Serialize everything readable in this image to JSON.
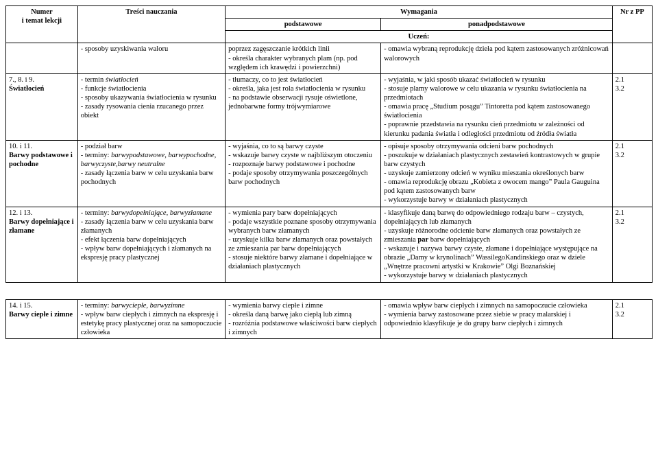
{
  "header": {
    "col1": "Numer\ni temat lekcji",
    "col2": "Treści nauczania",
    "req": "Wymagania",
    "basic": "podstawowe",
    "ext": "ponadpodstawowe",
    "student": "Uczeń:",
    "col5": "Nr z PP"
  },
  "rows": [
    {
      "num": "",
      "tresci": "- sposoby uzyskiwania waloru",
      "pod": "poprzez zagęszczanie krótkich linii\n- określa charakter wybranych plam (np. pod względem ich krawędzi i powierzchni)",
      "ponad": "- omawia wybraną reprodukcję dzieła pod kątem zastosowanych zróżnicowań walorowych",
      "nr": ""
    },
    {
      "num": "7., 8. i 9.",
      "numTitle": "Światłocień",
      "tresci_items": [
        {
          "pre": "- termin ",
          "it": "światłocień"
        },
        {
          "txt": "- funkcje światłocienia"
        },
        {
          "txt": "- sposoby ukazywania światłocienia w rysunku"
        },
        {
          "txt": "- zasady rysowania cienia rzucanego przez obiekt"
        }
      ],
      "pod": "- tłumaczy, co to jest światłocień\n- określa, jaka jest rola światłocienia w rysunku\n- na podstawie obserwacji rysuje oświetlone, jednobarwne formy trójwymiarowe",
      "ponad": "- wyjaśnia, w jaki sposób ukazać światłocień w rysunku\n- stosuje plamy walorowe w celu ukazania w rysunku światłocienia na przedmiotach\n- omawia pracę „Studium posągu” Tintoretta pod kątem zastosowanego światłocienia\n- poprawnie przedstawia na rysunku cień przedmiotu w zależności od kierunku padania światła i odległości przedmiotu od źródła światła",
      "nr": "2.1\n3.2"
    },
    {
      "num": "10. i 11.",
      "numTitle": "Barwy podstawowe i pochodne",
      "tresci_items": [
        {
          "txt": "- podział barw"
        },
        {
          "pre": "- terminy: ",
          "it": "barwypodstawowe, barwypochodne, barwyczyste,barwy neutralne"
        },
        {
          "txt": "- zasady łączenia barw w celu uzyskania barw pochodnych"
        }
      ],
      "pod": "- wyjaśnia, co to są barwy czyste\n- wskazuje barwy czyste w najbliższym otoczeniu\n- rozpoznaje barwy podstawowe i pochodne\n- podaje sposoby otrzymywania poszczególnych barw pochodnych",
      "ponad": "- opisuje sposoby otrzymywania odcieni barw pochodnych\n- poszukuje w działaniach plastycznych zestawień kontrastowych w grupie barw czystych\n- uzyskuje zamierzony odcień w wyniku mieszania określonych barw\n- omawia reprodukcję obrazu „Kobieta z owocem mango” Paula Gauguina pod kątem zastosowanych barw\n- wykorzystuje barwy w działaniach plastycznych",
      "nr": "2.1\n3.2"
    },
    {
      "num": "12. i 13.",
      "numTitle": "Barwy dopełniające i złamane",
      "tresci_items": [
        {
          "pre": "- terminy: ",
          "it": "barwydopełniające, barwyzłamane"
        },
        {
          "txt": "- zasady łączenia barw w celu uzyskania barw złamanych"
        },
        {
          "txt": "- efekt łączenia barw dopełniających"
        },
        {
          "txt": "- wpływ barw dopełniających i złamanych na ekspresję pracy plastycznej"
        }
      ],
      "pod_html": "- wymienia pary barw dopełniających\n- podaje wszystkie poznane sposoby otrzymywania wybranych barw złamanych\n- uzyskuje kilka barw złamanych oraz powstałych ze zmieszania par barw dopełniających\n- stosuje niektóre barwy złamane i dopełniające w działaniach plastycznych",
      "ponad_html": "- klasyfikuje daną barwę do odpowiedniego rodzaju barw – czystych, dopełniających lub złamanych\n- uzyskuje różnorodne odcienie barw złamanych oraz powstałych ze zmieszania <b>par</b> barw dopełniających\n- wskazuje i nazywa barwy czyste, złamane i dopełniające występujące na obrazie „Damy w krynolinach” WassilegoKandinskiego oraz w dziele „Wnętrze pracowni artystki w Krakowie” Olgi Boznańskiej\n- wykorzystuje barwy w działaniach plastycznych",
      "nr": "2.1\n3.2"
    },
    {
      "spacer": true
    },
    {
      "num": "14. i 15.",
      "numTitle": "Barwy ciepłe i zimne",
      "tresci_items": [
        {
          "pre": "- terminy: ",
          "it": "barwyciepłe, barwyzimne"
        },
        {
          "txt": "- wpływ barw ciepłych i zimnych na ekspresję i estetykę pracy plastycznej oraz na samopoczucie człowieka"
        }
      ],
      "pod": "- wymienia barwy ciepłe i zimne\n- określa daną barwę jako ciepłą lub zimną\n- rozróżnia podstawowe właściwości barw ciepłych i zimnych",
      "ponad": "- omawia wpływ barw ciepłych i zimnych na samopoczucie człowieka\n- wymienia barwy zastosowane przez siebie w pracy malarskiej i odpowiednio klasyfikuje je do grupy barw ciepłych i zimnych",
      "nr": "2.1\n3.2"
    }
  ]
}
